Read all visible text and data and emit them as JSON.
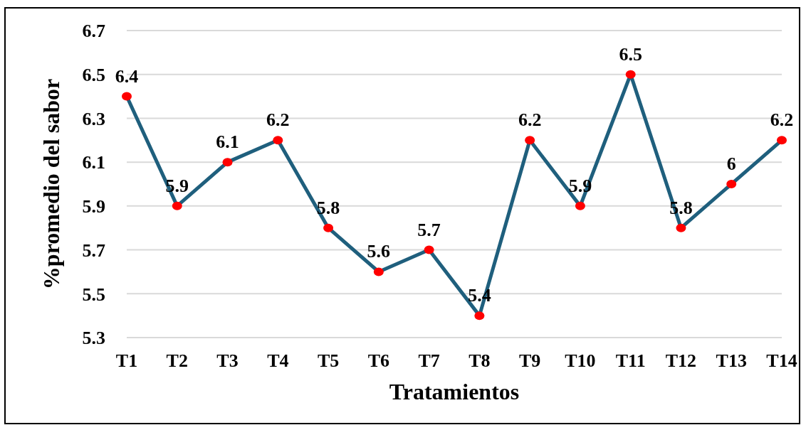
{
  "chart_data": {
    "type": "line",
    "xlabel": "Tratamientos",
    "ylabel": "%promedio del sabor",
    "categories": [
      "T1",
      "T2",
      "T3",
      "T4",
      "T5",
      "T6",
      "T7",
      "T8",
      "T9",
      "T10",
      "T11",
      "T12",
      "T13",
      "T14"
    ],
    "series": [
      {
        "color": "#1f5f7d",
        "colors": [
          "#ff0000",
          "#ff0000",
          "#ff0000",
          "#ff0000",
          "#ff0000",
          "#ff0000",
          "#ff0000",
          "#ff0000",
          "#ff0000",
          "#ff0000",
          "#ff0000",
          "#ff0000",
          "#ff0000",
          "#ff0000"
        ],
        "values": [
          6.4,
          5.9,
          6.1,
          6.2,
          5.8,
          5.6,
          5.7,
          5.4,
          6.2,
          5.9,
          6.5,
          5.8,
          6,
          6.2
        ]
      }
    ],
    "ylim": [
      5.3,
      6.7
    ],
    "yticks": [
      5.3,
      5.5,
      5.7,
      5.9,
      6.1,
      6.3,
      6.5,
      6.7
    ],
    "grid": "y",
    "marker": "circle",
    "line_style": "solid",
    "data_labels": true
  }
}
